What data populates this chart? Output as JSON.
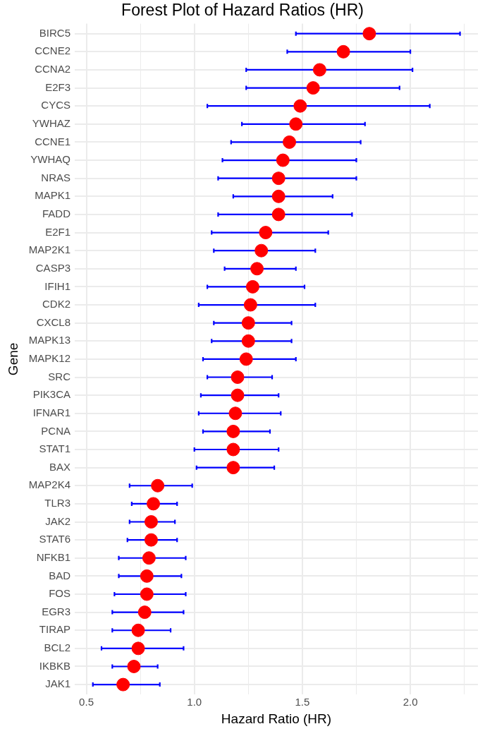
{
  "chart_data": {
    "type": "scatter",
    "orientation": "horizontal",
    "title": "Forest Plot of Hazard Ratios (HR)",
    "xlabel": "Hazard Ratio (HR)",
    "ylabel": "Gene",
    "categories": [
      "BIRC5",
      "CCNE2",
      "CCNA2",
      "E2F3",
      "CYCS",
      "YWHAZ",
      "CCNE1",
      "YWHAQ",
      "NRAS",
      "MAPK1",
      "FADD",
      "E2F1",
      "MAP2K1",
      "CASP3",
      "IFIH1",
      "CDK2",
      "CXCL8",
      "MAPK13",
      "MAPK12",
      "SRC",
      "PIK3CA",
      "IFNAR1",
      "PCNA",
      "STAT1",
      "BAX",
      "MAP2K4",
      "TLR3",
      "JAK2",
      "STAT6",
      "NFKB1",
      "BAD",
      "FOS",
      "EGR3",
      "TIRAP",
      "BCL2",
      "IKBKB",
      "JAK1"
    ],
    "values": [
      1.81,
      1.69,
      1.58,
      1.55,
      1.49,
      1.47,
      1.44,
      1.41,
      1.39,
      1.39,
      1.39,
      1.33,
      1.31,
      1.29,
      1.27,
      1.26,
      1.25,
      1.25,
      1.24,
      1.2,
      1.2,
      1.19,
      1.18,
      1.18,
      1.18,
      0.83,
      0.81,
      0.8,
      0.8,
      0.79,
      0.78,
      0.78,
      0.77,
      0.74,
      0.74,
      0.72,
      0.67
    ],
    "errors": [
      [
        1.47,
        2.23
      ],
      [
        1.43,
        2.0
      ],
      [
        1.24,
        2.01
      ],
      [
        1.24,
        1.95
      ],
      [
        1.06,
        2.09
      ],
      [
        1.22,
        1.79
      ],
      [
        1.17,
        1.77
      ],
      [
        1.13,
        1.75
      ],
      [
        1.11,
        1.75
      ],
      [
        1.18,
        1.64
      ],
      [
        1.11,
        1.73
      ],
      [
        1.08,
        1.62
      ],
      [
        1.09,
        1.56
      ],
      [
        1.14,
        1.47
      ],
      [
        1.06,
        1.51
      ],
      [
        1.02,
        1.56
      ],
      [
        1.09,
        1.45
      ],
      [
        1.08,
        1.45
      ],
      [
        1.04,
        1.47
      ],
      [
        1.06,
        1.36
      ],
      [
        1.03,
        1.39
      ],
      [
        1.02,
        1.4
      ],
      [
        1.04,
        1.35
      ],
      [
        1.0,
        1.39
      ],
      [
        1.01,
        1.37
      ],
      [
        0.7,
        0.99
      ],
      [
        0.71,
        0.92
      ],
      [
        0.7,
        0.91
      ],
      [
        0.69,
        0.92
      ],
      [
        0.65,
        0.96
      ],
      [
        0.65,
        0.94
      ],
      [
        0.63,
        0.96
      ],
      [
        0.62,
        0.95
      ],
      [
        0.62,
        0.89
      ],
      [
        0.57,
        0.95
      ],
      [
        0.62,
        0.83
      ],
      [
        0.53,
        0.84
      ]
    ],
    "color": "#ff0000",
    "xlim": [
      0.446,
      2.313
    ],
    "xticks": [
      {
        "value": 0.5,
        "label": "0.5"
      },
      {
        "value": 0.75,
        "label": null
      },
      {
        "value": 1.0,
        "label": "1.0"
      },
      {
        "value": 1.25,
        "label": null
      },
      {
        "value": 1.5,
        "label": "1.5"
      },
      {
        "value": 1.75,
        "label": null
      },
      {
        "value": 2.0,
        "label": "2.0"
      },
      {
        "value": 2.25,
        "label": null
      }
    ],
    "grid": true,
    "legend": false,
    "marker": "circle"
  }
}
